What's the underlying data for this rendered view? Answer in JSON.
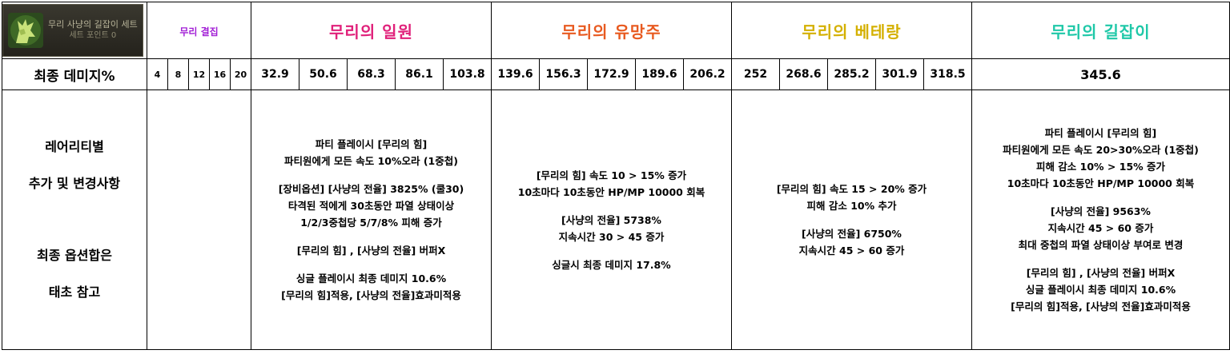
{
  "set_badge": {
    "title": "무리 사냥의 길잡이 세트",
    "points": "세트 포인트 0",
    "icon": "wolf-howl-icon"
  },
  "header": {
    "gathering": "무리 결집",
    "ilwon": "무리의 일원",
    "yumangju": "무리의 유망주",
    "beterang": "무리의 베테랑",
    "giljabi": "무리의 길잡이"
  },
  "colors": {
    "gathering": "#a21fd6",
    "ilwon": "#e0207a",
    "yumangju": "#e85a20",
    "beterang": "#d4b000",
    "giljabi": "#1fc8a8"
  },
  "damage": {
    "label": "최종 데미지%",
    "points": [
      "4",
      "8",
      "12",
      "16",
      "20"
    ],
    "ilwon": [
      "32.9",
      "50.6",
      "68.3",
      "86.1",
      "103.8"
    ],
    "yumangju": [
      "139.6",
      "156.3",
      "172.9",
      "189.6",
      "206.2"
    ],
    "beterang": [
      "252",
      "268.6",
      "285.2",
      "301.9",
      "318.5"
    ],
    "giljabi": "345.6"
  },
  "left_note": [
    "레어리티별",
    "추가 및 변경사항",
    "",
    "최종 옵션합은",
    "태초 참고"
  ],
  "desc": {
    "ilwon": [
      "파티 플레이시 [무리의 힘]",
      "파티원에게 모든 속도 10%오라 (1중첩)",
      "",
      "[장비옵션] [사냥의 전율] 3825% (쿨30)",
      "타격된 적에게 30초동안 파열 상태이상",
      "1/2/3중첩당 5/7/8% 피해 증가",
      "",
      "[무리의 힘] , [사냥의 전율] 버퍼X",
      "",
      "싱글 플레이시 최종 데미지 10.6%",
      "[무리의 힘]적용, [사냥의 전율]효과미적용"
    ],
    "yumangju": [
      "[무리의 힘] 속도 10 > 15% 증가",
      "10초마다 10초동안 HP/MP 10000 회복",
      "",
      "[사냥의 전율] 5738%",
      "지속시간 30 > 45 증가",
      "",
      "싱글시 최종 데미지 17.8%"
    ],
    "beterang": [
      "[무리의 힘] 속도 15 > 20% 증가",
      "피해 감소 10% 추가",
      "",
      "[사냥의 전율] 6750%",
      "지속시간 45 > 60 증가"
    ],
    "giljabi": [
      "파티 플레이시 [무리의 힘]",
      "파티원에게 모든 속도 20>30%오라 (1중첩)",
      "피해 감소 10% > 15% 증가",
      "10초마다 10초동안 HP/MP 10000 회복",
      "",
      "[사냥의 전율] 9563%",
      "지속시간 45 > 60 증가",
      "최대 중첩의 파열 상태이상 부여로 변경",
      "",
      "[무리의 힘] , [사냥의 전율] 버퍼X",
      "싱글 플레이시 최종 데미지 10.6%",
      "[무리의 힘]적용, [사냥의 전율]효과미적용"
    ]
  }
}
